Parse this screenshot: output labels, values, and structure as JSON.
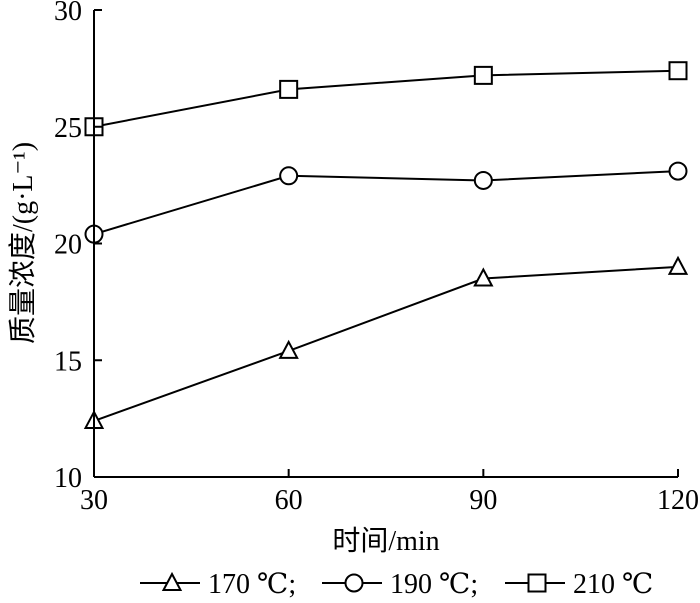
{
  "chart_data": {
    "type": "line",
    "title": "",
    "xlabel": "时间/min",
    "ylabel": "质量浓度/(g·L⁻¹)",
    "x": [
      30,
      60,
      90,
      120
    ],
    "xticks": [
      "30",
      "60",
      "90",
      "120"
    ],
    "yticks": [
      "10",
      "15",
      "20",
      "25",
      "30"
    ],
    "xlim": [
      30,
      120
    ],
    "ylim": [
      10,
      30
    ],
    "grid": false,
    "legend_position": "bottom",
    "series": [
      {
        "name": "170 ℃;",
        "marker": "triangle",
        "values": [
          12.4,
          15.4,
          18.5,
          19.0
        ]
      },
      {
        "name": "190 ℃;",
        "marker": "circle",
        "values": [
          20.4,
          22.9,
          22.7,
          23.1
        ]
      },
      {
        "name": "210 ℃",
        "marker": "square",
        "values": [
          25.0,
          26.6,
          27.2,
          27.4
        ]
      }
    ]
  }
}
